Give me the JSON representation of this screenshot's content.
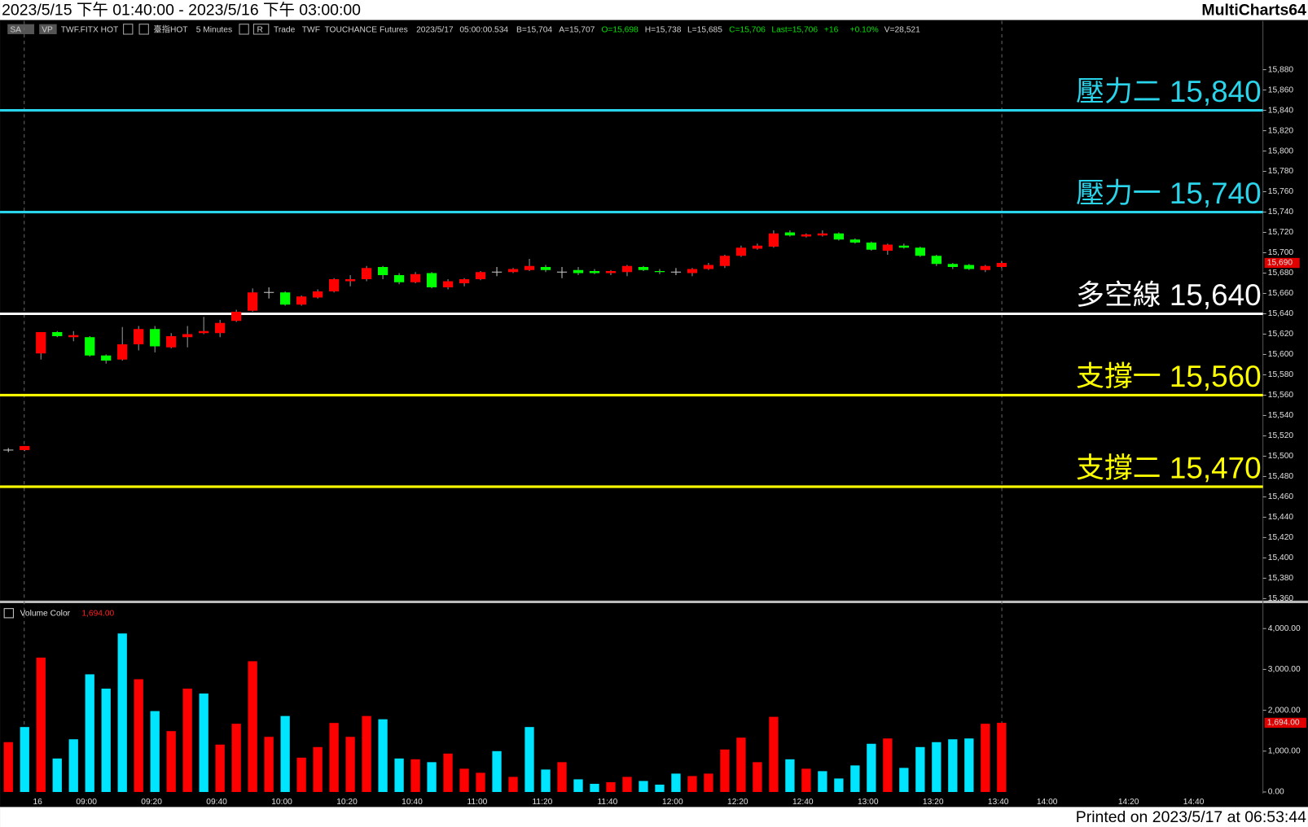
{
  "window": {
    "title": "2023/5/15 下午 01:40:00 - 2023/5/16 下午 03:00:00",
    "app": "MultiCharts64",
    "footer": "Printed on 2023/5/17 at 06:53:44",
    "info": [
      "SA",
      "VP",
      "TWF.FITX HOT",
      "臺指HOT",
      "5 Minutes",
      "R",
      "Trade",
      "TWF",
      "TOUCHANCE",
      "Futures",
      "2023/5/17",
      "05:00:00.534",
      "B=15,704",
      "A=15,707",
      "O=15,698",
      "H=15,738",
      "L=15,685",
      "C=15,706",
      "Last=15,706",
      "+16",
      "+0.10%",
      "V=28,521"
    ]
  },
  "chart_data": [
    {
      "type": "candlestick",
      "up_color": "#ff0000",
      "down_color": "#00ff00",
      "flat_color": "#c8c8c8",
      "open": [
        15506,
        15506,
        15601,
        15622,
        15617,
        15617,
        15599,
        15595,
        15610,
        15625,
        15607,
        15617,
        15621,
        15621,
        15633,
        15643,
        15661,
        15661,
        15649,
        15656,
        15662,
        15672,
        15674,
        15686,
        15678,
        15671,
        15680,
        15666,
        15670,
        15674,
        15681,
        15681,
        15683,
        15686,
        15681,
        15683,
        15682,
        15680,
        15681,
        15686,
        15682,
        15681,
        15680,
        15684,
        15687,
        15697,
        15704,
        15706,
        15720,
        15716,
        15717,
        15719,
        15713,
        15710,
        15702,
        15707,
        15705,
        15697,
        15689,
        15688,
        15683,
        15686
      ],
      "high": [
        15508,
        15510,
        15622,
        15623,
        15623,
        15618,
        15600,
        15627,
        15628,
        15628,
        15621,
        15628,
        15637,
        15634,
        15644,
        15665,
        15666,
        15662,
        15658,
        15664,
        15675,
        15678,
        15687,
        15687,
        15680,
        15681,
        15681,
        15674,
        15675,
        15682,
        15686,
        15685,
        15694,
        15688,
        15686,
        15686,
        15684,
        15683,
        15688,
        15687,
        15684,
        15685,
        15685,
        15690,
        15698,
        15707,
        15709,
        15722,
        15722,
        15719,
        15722,
        15720,
        15714,
        15711,
        15709,
        15709,
        15706,
        15698,
        15690,
        15689,
        15688,
        15692
      ],
      "low": [
        15504,
        15505,
        15595,
        15617,
        15613,
        15598,
        15591,
        15594,
        15604,
        15602,
        15606,
        15607,
        15620,
        15617,
        15632,
        15642,
        15655,
        15648,
        15648,
        15655,
        15661,
        15667,
        15672,
        15674,
        15669,
        15670,
        15665,
        15664,
        15667,
        15673,
        15677,
        15680,
        15682,
        15681,
        15675,
        15678,
        15679,
        15678,
        15677,
        15682,
        15679,
        15678,
        15677,
        15683,
        15685,
        15696,
        15703,
        15705,
        15716,
        15715,
        15716,
        15712,
        15709,
        15702,
        15698,
        15704,
        15696,
        15687,
        15684,
        15683,
        15681,
        15685
      ],
      "close": [
        15506,
        15510,
        15622,
        15618,
        15619,
        15599,
        15594,
        15610,
        15625,
        15608,
        15618,
        15620,
        15623,
        15631,
        15642,
        15661,
        15661,
        15649,
        15657,
        15662,
        15674,
        15674,
        15685,
        15678,
        15671,
        15679,
        15666,
        15672,
        15674,
        15681,
        15681,
        15684,
        15687,
        15683,
        15681,
        15680,
        15680,
        15682,
        15687,
        15683,
        15681,
        15681,
        15684,
        15688,
        15697,
        15705,
        15707,
        15719,
        15717,
        15718,
        15719,
        15713,
        15710,
        15703,
        15708,
        15705,
        15697,
        15689,
        15686,
        15684,
        15687,
        15690
      ],
      "ylim": [
        15360,
        15928
      ],
      "yticks": [
        {
          "value": 15360,
          "label": "15,360"
        },
        {
          "value": 15380,
          "label": "15,380"
        },
        {
          "value": 15400,
          "label": "15,400"
        },
        {
          "value": 15420,
          "label": "15,420"
        },
        {
          "value": 15440,
          "label": "15,440"
        },
        {
          "value": 15460,
          "label": "15,460"
        },
        {
          "value": 15480,
          "label": "15,480"
        },
        {
          "value": 15500,
          "label": "15,500"
        },
        {
          "value": 15520,
          "label": "15,520"
        },
        {
          "value": 15540,
          "label": "15,540"
        },
        {
          "value": 15560,
          "label": "15,560"
        },
        {
          "value": 15580,
          "label": "15,580"
        },
        {
          "value": 15600,
          "label": "15,600"
        },
        {
          "value": 15620,
          "label": "15,620"
        },
        {
          "value": 15640,
          "label": "15,640"
        },
        {
          "value": 15660,
          "label": "15,660"
        },
        {
          "value": 15680,
          "label": "15,680"
        },
        {
          "value": 15700,
          "label": "15,700"
        },
        {
          "value": 15720,
          "label": "15,720"
        },
        {
          "value": 15740,
          "label": "15,740"
        },
        {
          "value": 15760,
          "label": "15,760"
        },
        {
          "value": 15780,
          "label": "15,780"
        },
        {
          "value": 15800,
          "label": "15,800"
        },
        {
          "value": 15820,
          "label": "15,820"
        },
        {
          "value": 15840,
          "label": "15,840"
        },
        {
          "value": 15860,
          "label": "15,860"
        },
        {
          "value": 15880,
          "label": "15,880"
        }
      ],
      "levels": [
        {
          "name": "壓力二",
          "value": 15840,
          "value_label": "15,840",
          "color": "#2ad4ea"
        },
        {
          "name": "壓力一",
          "value": 15740,
          "value_label": "15,740",
          "color": "#2ad4ea"
        },
        {
          "name": "多空線",
          "value": 15640,
          "value_label": "15,640",
          "color": "#ffffff"
        },
        {
          "name": "支撐一",
          "value": 15560,
          "value_label": "15,560",
          "color": "#ffff00"
        },
        {
          "name": "支撐二",
          "value": 15470,
          "value_label": "15,470",
          "color": "#ffff00"
        }
      ],
      "last": {
        "value": 15690,
        "label": "15,690"
      }
    },
    {
      "type": "bar",
      "title": "Volume Color",
      "categories": [
        null,
        null,
        "16",
        null,
        null,
        "09:00",
        null,
        null,
        null,
        "09:20",
        null,
        null,
        null,
        "09:40",
        null,
        null,
        null,
        "10:00",
        null,
        null,
        null,
        "10:20",
        null,
        null,
        null,
        "10:40",
        null,
        null,
        null,
        "11:00",
        null,
        null,
        null,
        "11:20",
        null,
        null,
        null,
        "11:40",
        null,
        null,
        null,
        "12:00",
        null,
        null,
        null,
        "12:20",
        null,
        null,
        null,
        "12:40",
        null,
        null,
        null,
        "13:00",
        null,
        null,
        null,
        "13:20",
        null,
        null,
        null,
        "13:40",
        null,
        null,
        "14:00",
        null,
        null,
        null,
        null,
        "14:20",
        null,
        null,
        null,
        "14:40",
        null
      ],
      "values": [
        1220,
        1590,
        3290,
        820,
        1290,
        2880,
        2530,
        3880,
        2760,
        1980,
        1490,
        2530,
        2410,
        1160,
        1670,
        3200,
        1350,
        1860,
        840,
        1100,
        1690,
        1350,
        1860,
        1780,
        820,
        800,
        730,
        940,
        570,
        470,
        1000,
        370,
        1590,
        550,
        730,
        310,
        200,
        240,
        370,
        270,
        180,
        450,
        390,
        450,
        1040,
        1330,
        730,
        1840,
        800,
        570,
        510,
        330,
        650,
        1180,
        1310,
        590,
        1100,
        1220,
        1290,
        1310,
        1670,
        1694,
        null,
        null,
        null,
        null,
        null,
        null,
        null,
        null,
        null,
        null,
        null,
        null,
        null
      ],
      "colors": [
        "#ff0000",
        "#00e5ff",
        "#ff0000",
        "#00e5ff",
        "#00e5ff",
        "#00e5ff",
        "#00e5ff",
        "#00e5ff",
        "#ff0000",
        "#00e5ff",
        "#ff0000",
        "#ff0000",
        "#00e5ff",
        "#ff0000",
        "#ff0000",
        "#ff0000",
        "#ff0000",
        "#00e5ff",
        "#ff0000",
        "#ff0000",
        "#ff0000",
        "#ff0000",
        "#ff0000",
        "#00e5ff",
        "#00e5ff",
        "#ff0000",
        "#00e5ff",
        "#ff0000",
        "#ff0000",
        "#ff0000",
        "#00e5ff",
        "#ff0000",
        "#00e5ff",
        "#00e5ff",
        "#ff0000",
        "#00e5ff",
        "#00e5ff",
        "#ff0000",
        "#ff0000",
        "#00e5ff",
        "#00e5ff",
        "#00e5ff",
        "#ff0000",
        "#ff0000",
        "#ff0000",
        "#ff0000",
        "#ff0000",
        "#ff0000",
        "#00e5ff",
        "#ff0000",
        "#00e5ff",
        "#00e5ff",
        "#00e5ff",
        "#00e5ff",
        "#ff0000",
        "#00e5ff",
        "#00e5ff",
        "#00e5ff",
        "#00e5ff",
        "#00e5ff",
        "#ff0000",
        "#ff0000",
        null,
        null,
        null,
        null,
        null,
        null,
        null,
        null,
        null,
        null,
        null,
        null,
        null
      ],
      "ylim": [
        0,
        4530
      ],
      "yticks": [
        {
          "value": 0,
          "label": "0.00"
        },
        {
          "value": 1000,
          "label": "1,000.00"
        },
        {
          "value": 2000,
          "label": "2,000.00"
        },
        {
          "value": 3000,
          "label": "3,000.00"
        },
        {
          "value": 4000,
          "label": "4,000.00"
        }
      ],
      "last": {
        "value": 1694,
        "label": "1,694.00"
      }
    }
  ]
}
